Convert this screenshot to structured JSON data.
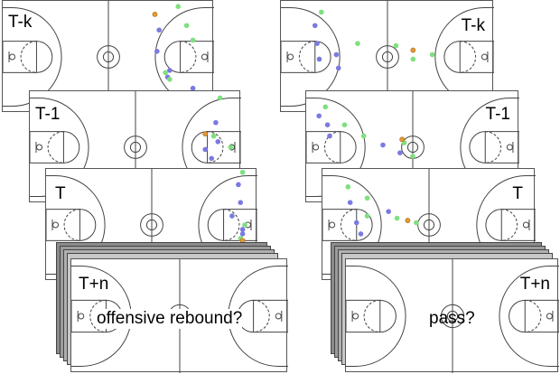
{
  "colors": {
    "offense": "#7a7ae0",
    "defense": "#7ee07e",
    "ball": "#e09a3a",
    "line": "#444444",
    "stack_fill": "#9a9a9a"
  },
  "left_sequence": {
    "frames": [
      {
        "label": "T-k",
        "label_side": "left",
        "basket_side": "right"
      },
      {
        "label": "T-1",
        "label_side": "left",
        "basket_side": "right"
      },
      {
        "label": "T",
        "label_side": "left",
        "basket_side": "right"
      }
    ],
    "future": {
      "label": "T+n",
      "label_side": "left",
      "question": "offensive rebound?"
    }
  },
  "right_sequence": {
    "frames": [
      {
        "label": "T-k",
        "label_side": "right",
        "basket_side": "left"
      },
      {
        "label": "T-1",
        "label_side": "right",
        "basket_side": "left"
      },
      {
        "label": "T",
        "label_side": "right",
        "basket_side": "left"
      }
    ],
    "future": {
      "label": "T+n",
      "label_side": "right",
      "question": "pass?"
    }
  }
}
